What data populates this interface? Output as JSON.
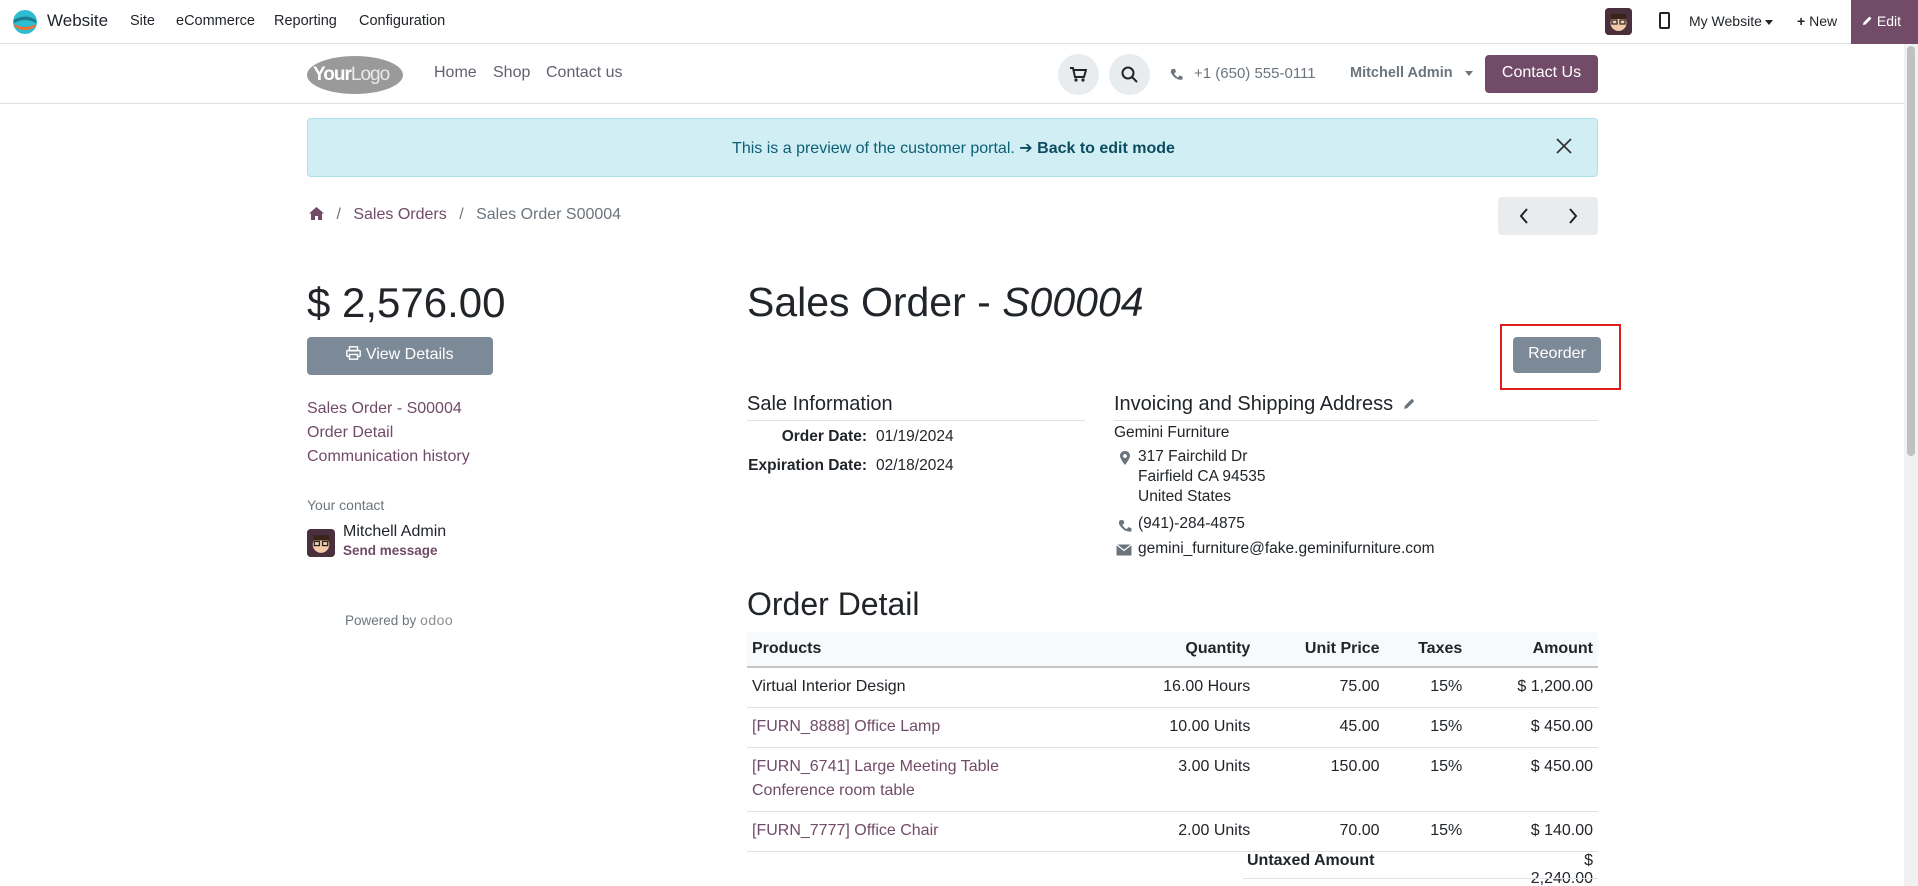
{
  "adminbar": {
    "app_name": "Website",
    "menu": [
      "Site",
      "eCommerce",
      "Reporting",
      "Configuration"
    ],
    "my_website": "My Website",
    "new_label": "New",
    "edit_label": "Edit"
  },
  "header": {
    "logo_text_bold": "Your",
    "logo_text": "Logo",
    "nav": [
      "Home",
      "Shop",
      "Contact us"
    ],
    "phone": "+1 (650) 555-0111",
    "user": "Mitchell Admin",
    "contact_button": "Contact Us"
  },
  "alert": {
    "text": "This is a preview of the customer portal.",
    "link": "➔ Back to edit mode"
  },
  "breadcrumb": {
    "items": [
      "Sales Orders",
      "Sales Order S00004"
    ]
  },
  "sidebar": {
    "amount": "$ 2,576.00",
    "view_details": "View Details",
    "links": [
      "Sales Order - S00004",
      "Order Detail",
      "Communication history"
    ],
    "your_contact": "Your contact",
    "contact_name": "Mitchell Admin",
    "send_message": "Send message",
    "powered_by": "Powered by",
    "odoo": "odoo"
  },
  "order": {
    "title_prefix": "Sales Order - ",
    "title_ref": "S00004",
    "reorder": "Reorder",
    "sale_info_heading": "Sale Information",
    "order_date_label": "Order Date:",
    "order_date": "01/19/2024",
    "expiration_label": "Expiration Date:",
    "expiration_date": "02/18/2024",
    "address_heading": "Invoicing and Shipping Address",
    "company": "Gemini Furniture",
    "street": "317 Fairchild Dr",
    "city": "Fairfield CA 94535",
    "country": "United States",
    "phone": "(941)-284-4875",
    "email": "gemini_furniture@fake.geminifurniture.com"
  },
  "order_detail": {
    "heading": "Order Detail",
    "columns": [
      "Products",
      "Quantity",
      "Unit Price",
      "Taxes",
      "Amount"
    ],
    "rows": [
      {
        "product": "Virtual Interior Design",
        "product2": "",
        "quantity": "16.00 Hours",
        "unit_price": "75.00",
        "taxes": "15%",
        "amount": "$ 1,200.00"
      },
      {
        "product": "[FURN_8888] Office Lamp",
        "product2": "",
        "quantity": "10.00 Units",
        "unit_price": "45.00",
        "taxes": "15%",
        "amount": "$ 450.00"
      },
      {
        "product": "[FURN_6741] Large Meeting Table",
        "product2": "Conference room table",
        "quantity": "3.00 Units",
        "unit_price": "150.00",
        "taxes": "15%",
        "amount": "$ 450.00"
      },
      {
        "product": "[FURN_7777] Office Chair",
        "product2": "",
        "quantity": "2.00 Units",
        "unit_price": "70.00",
        "taxes": "15%",
        "amount": "$ 140.00"
      }
    ],
    "untaxed_label": "Untaxed Amount",
    "untaxed_value": "$ 2,240.00"
  }
}
